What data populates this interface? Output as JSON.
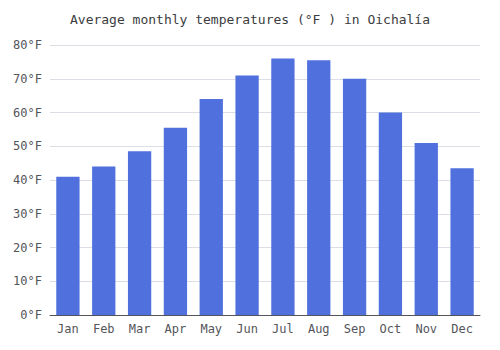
{
  "chart_data": {
    "type": "bar",
    "title": "Average monthly temperatures (°F ) in Oichalía",
    "categories": [
      "Jan",
      "Feb",
      "Mar",
      "Apr",
      "May",
      "Jun",
      "Jul",
      "Aug",
      "Sep",
      "Oct",
      "Nov",
      "Dec"
    ],
    "values": [
      41,
      44,
      48.5,
      55.5,
      64,
      71,
      76,
      75.5,
      70,
      60,
      51,
      43.5
    ],
    "ylim": [
      0,
      80
    ],
    "yticks": [
      {
        "value": 0,
        "label": "0°F"
      },
      {
        "value": 10,
        "label": "10°F"
      },
      {
        "value": 20,
        "label": "20°F"
      },
      {
        "value": 30,
        "label": "30°F"
      },
      {
        "value": 40,
        "label": "40°F"
      },
      {
        "value": 50,
        "label": "50°F"
      },
      {
        "value": 60,
        "label": "60°F"
      },
      {
        "value": 70,
        "label": "70°F"
      },
      {
        "value": 80,
        "label": "80°F"
      }
    ],
    "grid": true
  }
}
